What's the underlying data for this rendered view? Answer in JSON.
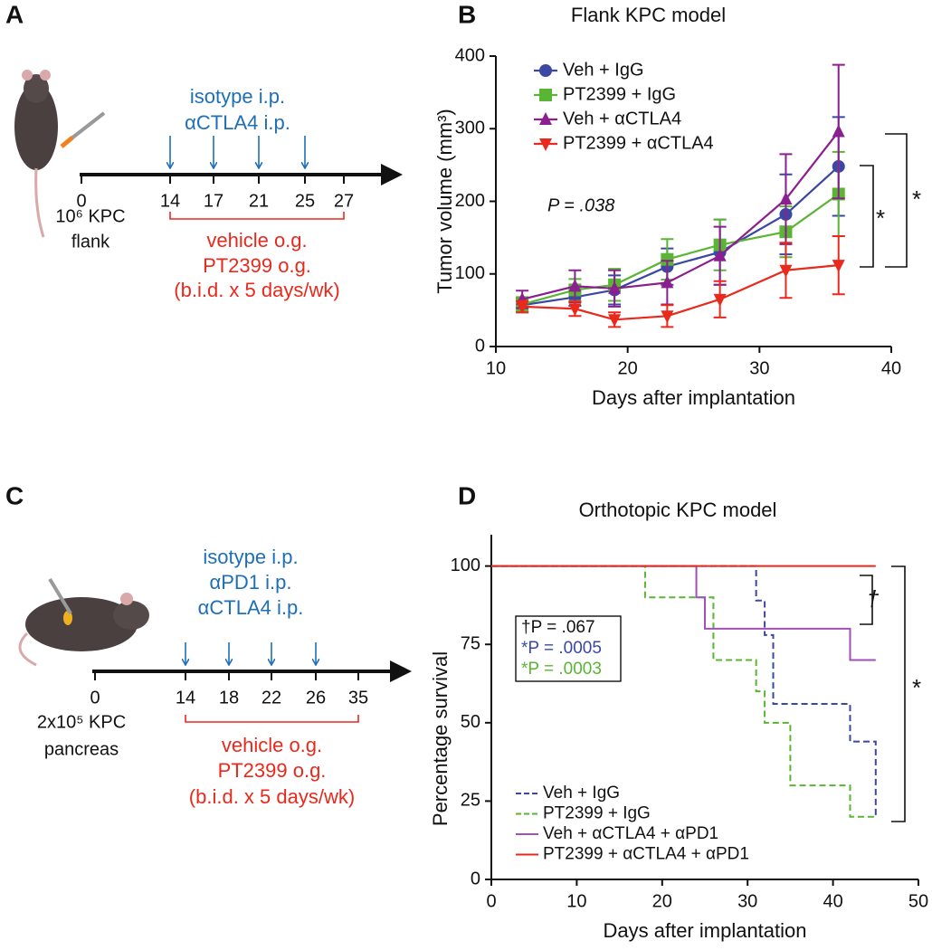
{
  "panel_labels": [
    "A",
    "B",
    "C",
    "D"
  ],
  "schematics": [
    {
      "injections": [
        "isotype i.p.",
        "αCTLA4 i.p."
      ],
      "days": [
        0,
        14,
        17,
        21,
        25,
        27
      ],
      "implant": [
        "10⁶ KPC",
        "flank"
      ],
      "treatment": [
        "vehicle o.g.",
        "PT2399 o.g.",
        "(b.i.d. x 5 days/wk)"
      ]
    },
    {
      "injections": [
        "isotype i.p.",
        "αPD1 i.p.",
        "αCTLA4 i.p."
      ],
      "days": [
        0,
        14,
        18,
        22,
        26,
        35
      ],
      "implant": [
        "2x10⁵ KPC",
        "pancreas"
      ],
      "treatment": [
        "vehicle o.g.",
        "PT2399 o.g.",
        "(b.i.d. x 5 days/wk)"
      ]
    }
  ],
  "chart_data": [
    {
      "type": "line",
      "title": "Flank KPC model",
      "x_label": "Days after implantation",
      "y_label": "Tumor volume (mm³)",
      "x": [
        12,
        16,
        19,
        23,
        27,
        32,
        36
      ],
      "series": [
        {
          "name": "Veh + IgG",
          "color": "#3a47a3",
          "marker": "circle",
          "values": [
            57,
            68,
            78,
            110,
            130,
            182,
            248
          ],
          "errors": [
            10,
            12,
            20,
            25,
            45,
            55,
            68
          ]
        },
        {
          "name": "PT2399 + IgG",
          "color": "#5ab534",
          "marker": "square",
          "values": [
            58,
            78,
            85,
            120,
            140,
            158,
            210
          ],
          "errors": [
            10,
            15,
            22,
            28,
            35,
            35,
            58
          ]
        },
        {
          "name": "Veh + αCTLA4",
          "color": "#8b1f8f",
          "marker": "triangle",
          "values": [
            65,
            83,
            80,
            88,
            125,
            203,
            296
          ],
          "errors": [
            12,
            22,
            25,
            30,
            40,
            62,
            92
          ]
        },
        {
          "name": "PT2399 + αCTLA4",
          "color": "#e8291c",
          "marker": "down-triangle",
          "values": [
            55,
            52,
            37,
            42,
            65,
            105,
            112
          ],
          "errors": [
            8,
            10,
            10,
            15,
            25,
            38,
            40
          ]
        }
      ],
      "xlim": [
        10,
        40
      ],
      "xticks": [
        10,
        20,
        30,
        40
      ],
      "ylim": [
        0,
        400
      ],
      "yticks": [
        0,
        100,
        200,
        300,
        400
      ],
      "annotation": "P = .038",
      "significance": [
        "*",
        "*"
      ]
    },
    {
      "type": "step",
      "title": "Orthotopic KPC model",
      "x_label": "Days after implantation",
      "y_label": "Percentage survival",
      "series": [
        {
          "name": "Veh + IgG",
          "color": "#3a47a3",
          "dashed": true,
          "x": [
            0,
            31,
            32,
            33,
            42,
            45
          ],
          "values": [
            100,
            89,
            78,
            56,
            44,
            20
          ]
        },
        {
          "name": "PT2399 + IgG",
          "color": "#5ab534",
          "dashed": true,
          "x": [
            0,
            18,
            26,
            31,
            32,
            35,
            42,
            45
          ],
          "values": [
            100,
            90,
            70,
            60,
            50,
            30,
            20,
            20
          ]
        },
        {
          "name": "Veh + αCTLA4 + αPD1",
          "color": "#a24fb8",
          "dashed": false,
          "x": [
            0,
            24,
            25,
            42,
            45
          ],
          "values": [
            100,
            90,
            80,
            70,
            70
          ]
        },
        {
          "name": "PT2399 + αCTLA4 + αPD1",
          "color": "#e8291c",
          "dashed": false,
          "x": [
            0,
            45
          ],
          "values": [
            100,
            100
          ]
        }
      ],
      "xlim": [
        0,
        50
      ],
      "xticks": [
        0,
        10,
        20,
        30,
        40,
        50
      ],
      "ylim": [
        0,
        110
      ],
      "yticks": [
        0,
        25,
        50,
        75,
        100
      ],
      "p_values": [
        {
          "text": "†P = .067",
          "color": "#111111"
        },
        {
          "text": "*P = .0005",
          "color": "#3a47a3"
        },
        {
          "text": "*P = .0003",
          "color": "#5ab534"
        }
      ],
      "significance": [
        "†",
        "*"
      ]
    }
  ]
}
